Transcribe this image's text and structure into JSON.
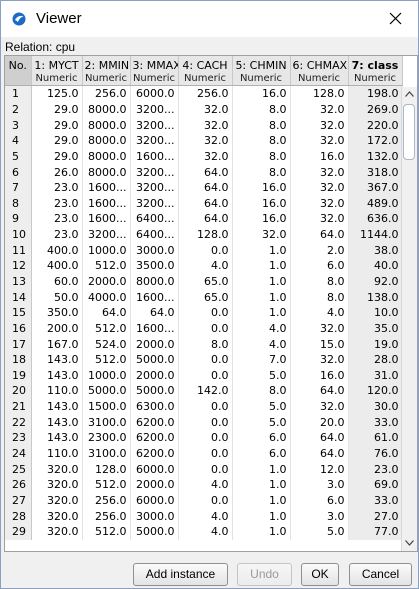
{
  "window": {
    "title": "Viewer"
  },
  "relation": "Relation: cpu",
  "table": {
    "columns": [
      {
        "name": "No.",
        "type": ""
      },
      {
        "name": "1: MYCT",
        "type": "Numeric"
      },
      {
        "name": "2: MMIN",
        "type": "Numeric"
      },
      {
        "name": "3: MMAX",
        "type": "Numeric"
      },
      {
        "name": "4: CACH",
        "type": "Numeric"
      },
      {
        "name": "5: CHMIN",
        "type": "Numeric"
      },
      {
        "name": "6: CHMAX",
        "type": "Numeric"
      },
      {
        "name": "7: class",
        "type": "Numeric"
      }
    ],
    "rows": [
      [
        "1",
        "125.0",
        "256.0",
        "6000.0",
        "256.0",
        "16.0",
        "128.0",
        "198.0"
      ],
      [
        "2",
        "29.0",
        "8000.0",
        "3200...",
        "32.0",
        "8.0",
        "32.0",
        "269.0"
      ],
      [
        "3",
        "29.0",
        "8000.0",
        "3200...",
        "32.0",
        "8.0",
        "32.0",
        "220.0"
      ],
      [
        "4",
        "29.0",
        "8000.0",
        "3200...",
        "32.0",
        "8.0",
        "32.0",
        "172.0"
      ],
      [
        "5",
        "29.0",
        "8000.0",
        "1600...",
        "32.0",
        "8.0",
        "16.0",
        "132.0"
      ],
      [
        "6",
        "26.0",
        "8000.0",
        "3200...",
        "64.0",
        "8.0",
        "32.0",
        "318.0"
      ],
      [
        "7",
        "23.0",
        "1600...",
        "3200...",
        "64.0",
        "16.0",
        "32.0",
        "367.0"
      ],
      [
        "8",
        "23.0",
        "1600...",
        "3200...",
        "64.0",
        "16.0",
        "32.0",
        "489.0"
      ],
      [
        "9",
        "23.0",
        "1600...",
        "6400...",
        "64.0",
        "16.0",
        "32.0",
        "636.0"
      ],
      [
        "10",
        "23.0",
        "3200...",
        "6400...",
        "128.0",
        "32.0",
        "64.0",
        "1144.0"
      ],
      [
        "11",
        "400.0",
        "1000.0",
        "3000.0",
        "0.0",
        "1.0",
        "2.0",
        "38.0"
      ],
      [
        "12",
        "400.0",
        "512.0",
        "3500.0",
        "4.0",
        "1.0",
        "6.0",
        "40.0"
      ],
      [
        "13",
        "60.0",
        "2000.0",
        "8000.0",
        "65.0",
        "1.0",
        "8.0",
        "92.0"
      ],
      [
        "14",
        "50.0",
        "4000.0",
        "1600...",
        "65.0",
        "1.0",
        "8.0",
        "138.0"
      ],
      [
        "15",
        "350.0",
        "64.0",
        "64.0",
        "0.0",
        "1.0",
        "4.0",
        "10.0"
      ],
      [
        "16",
        "200.0",
        "512.0",
        "1600...",
        "0.0",
        "4.0",
        "32.0",
        "35.0"
      ],
      [
        "17",
        "167.0",
        "524.0",
        "2000.0",
        "8.0",
        "4.0",
        "15.0",
        "19.0"
      ],
      [
        "18",
        "143.0",
        "512.0",
        "5000.0",
        "0.0",
        "7.0",
        "32.0",
        "28.0"
      ],
      [
        "19",
        "143.0",
        "1000.0",
        "2000.0",
        "0.0",
        "5.0",
        "16.0",
        "31.0"
      ],
      [
        "20",
        "110.0",
        "5000.0",
        "5000.0",
        "142.0",
        "8.0",
        "64.0",
        "120.0"
      ],
      [
        "21",
        "143.0",
        "1500.0",
        "6300.0",
        "0.0",
        "5.0",
        "32.0",
        "30.0"
      ],
      [
        "22",
        "143.0",
        "3100.0",
        "6200.0",
        "0.0",
        "5.0",
        "20.0",
        "33.0"
      ],
      [
        "23",
        "143.0",
        "2300.0",
        "6200.0",
        "0.0",
        "6.0",
        "64.0",
        "61.0"
      ],
      [
        "24",
        "110.0",
        "3100.0",
        "6200.0",
        "0.0",
        "6.0",
        "64.0",
        "76.0"
      ],
      [
        "25",
        "320.0",
        "128.0",
        "6000.0",
        "0.0",
        "1.0",
        "12.0",
        "23.0"
      ],
      [
        "26",
        "320.0",
        "512.0",
        "2000.0",
        "4.0",
        "1.0",
        "3.0",
        "69.0"
      ],
      [
        "27",
        "320.0",
        "256.0",
        "6000.0",
        "0.0",
        "1.0",
        "6.0",
        "33.0"
      ],
      [
        "28",
        "320.0",
        "256.0",
        "3000.0",
        "4.0",
        "1.0",
        "3.0",
        "27.0"
      ],
      [
        "29",
        "320.0",
        "512.0",
        "5000.0",
        "4.0",
        "1.0",
        "5.0",
        "77.0"
      ]
    ]
  },
  "buttons": {
    "add_instance": "Add instance",
    "undo": "Undo",
    "ok": "OK",
    "cancel": "Cancel"
  },
  "colors": {
    "accent": "#1c6bc4",
    "disabled_text": "#9a9a9a"
  },
  "icons": {
    "app": "weka-bird-icon",
    "close": "close-icon",
    "scroll_up": "chevron-up-icon",
    "scroll_down": "chevron-down-icon"
  }
}
